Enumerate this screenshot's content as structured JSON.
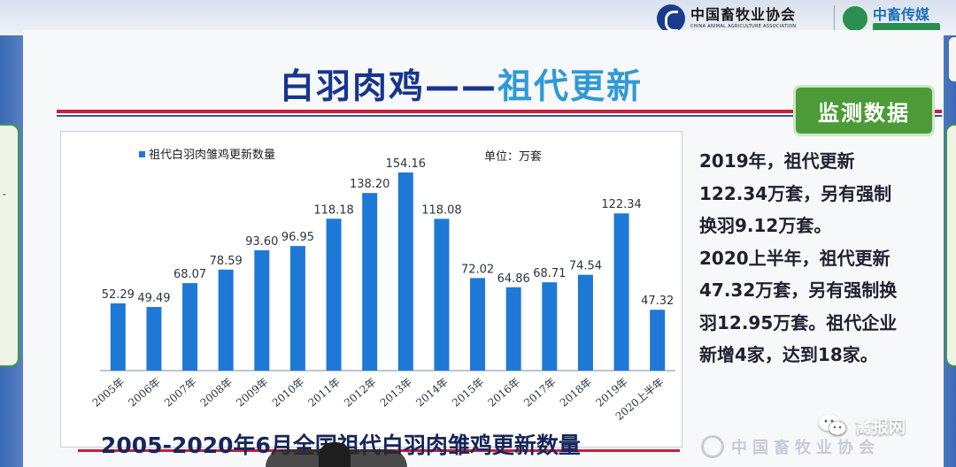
{
  "slide": {
    "title_main": "白羽肉鸡",
    "title_dash": "——",
    "title_sub": "祖代更新",
    "badge": "监测数据",
    "bottom_caption": "2005-2020年6月全国祖代白羽肉雏鸡更新数量",
    "side_paragraph_1": "2019年，祖代更新\n122.34万套，另有强制\n换羽9.12万套。",
    "side_paragraph_2": "2020上半年，祖代更新\n47.32万套，另有强制换\n羽12.95万套。祖代企业\n新增4家，达到18家。"
  },
  "logos": {
    "association_cn": "中国畜牧业协会",
    "association_en": "CHINA ANIMAL AGRICULTURE ASSOCIATION",
    "media_cn": "中畜传媒",
    "footer_association": "中国畜牧业协会",
    "wechat_account": "禽报网"
  },
  "colors": {
    "bar": "#1e78d6",
    "title_dark": "#16358f",
    "title_light": "#2f9ad6",
    "badge": "#4c9b38",
    "rule": "#c8213a"
  },
  "icons": [
    "association-logo-icon",
    "media-logo-icon",
    "wechat-icon"
  ],
  "chart_data": {
    "type": "bar",
    "legend": "祖代白羽肉雏鸡更新数量",
    "unit_label": "单位：万套",
    "legend_position": "top-left",
    "grid": false,
    "categories": [
      "2005年",
      "2006年",
      "2007年",
      "2008年",
      "2009年",
      "2010年",
      "2011年",
      "2012年",
      "2013年",
      "2014年",
      "2015年",
      "2016年",
      "2017年",
      "2018年",
      "2019年",
      "2020上半年"
    ],
    "values": [
      52.29,
      49.49,
      68.07,
      78.59,
      93.6,
      96.95,
      118.18,
      138.2,
      154.16,
      118.08,
      72.02,
      64.86,
      68.71,
      74.54,
      122.34,
      47.32
    ],
    "value_labels": [
      "52.29",
      "49.49",
      "68.07",
      "78.59",
      "93.60",
      "96.95",
      "118.18",
      "138.20",
      "154.16",
      "118.08",
      "72.02",
      "64.86",
      "68.71",
      "74.54",
      "122.34",
      "47.32"
    ],
    "ylim": [
      0,
      154.16
    ]
  }
}
